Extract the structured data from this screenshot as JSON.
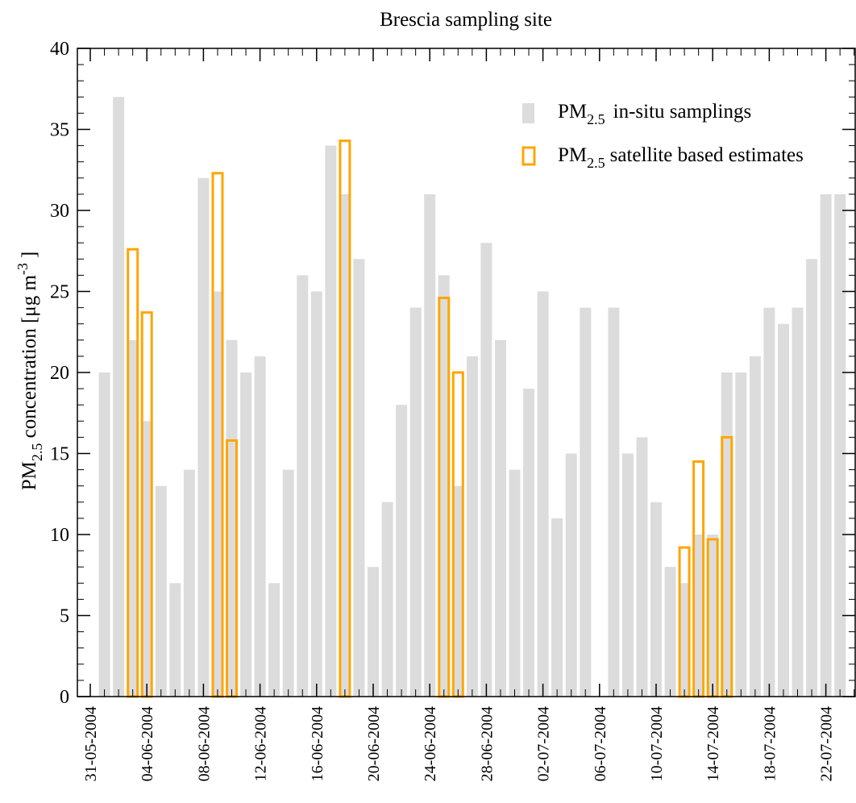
{
  "chart_data": {
    "type": "bar",
    "title": "Brescia sampling site",
    "ylabel": {
      "main": "PM",
      "sub": "2.5",
      "mid": " concentration  [μg m",
      "sup": "-3",
      "end": "]"
    },
    "ylim": [
      0,
      40
    ],
    "y_ticks": [
      "0",
      "5",
      "10",
      "15",
      "20",
      "25",
      "30",
      "35",
      "40"
    ],
    "x_ticks": [
      "31-05-2004",
      "04-06-2004",
      "08-06-2004",
      "12-06-2004",
      "16-06-2004",
      "20-06-2004",
      "24-06-2004",
      "28-06-2004",
      "02-07-2004",
      "06-07-2004",
      "10-07-2004",
      "14-07-2004",
      "18-07-2004",
      "22-07-2004"
    ],
    "x_start": "31-05-2004",
    "legend_position": "top-right",
    "series": [
      {
        "name_main": "PM",
        "name_sub": "2.5",
        "name_rest": "in-situ samplings",
        "color": "#dcdcdc",
        "style": "filled",
        "points": [
          [
            "01-06-2004",
            20
          ],
          [
            "02-06-2004",
            37
          ],
          [
            "03-06-2004",
            22
          ],
          [
            "04-06-2004",
            17
          ],
          [
            "05-06-2004",
            13
          ],
          [
            "06-06-2004",
            7
          ],
          [
            "07-06-2004",
            14
          ],
          [
            "08-06-2004",
            32
          ],
          [
            "09-06-2004",
            25
          ],
          [
            "10-06-2004",
            22
          ],
          [
            "11-06-2004",
            20
          ],
          [
            "12-06-2004",
            21
          ],
          [
            "13-06-2004",
            7
          ],
          [
            "14-06-2004",
            14
          ],
          [
            "15-06-2004",
            26
          ],
          [
            "16-06-2004",
            25
          ],
          [
            "17-06-2004",
            34
          ],
          [
            "18-06-2004",
            31
          ],
          [
            "19-06-2004",
            27
          ],
          [
            "20-06-2004",
            8
          ],
          [
            "21-06-2004",
            12
          ],
          [
            "22-06-2004",
            18
          ],
          [
            "23-06-2004",
            24
          ],
          [
            "24-06-2004",
            31
          ],
          [
            "25-06-2004",
            26
          ],
          [
            "26-06-2004",
            13
          ],
          [
            "27-06-2004",
            21
          ],
          [
            "28-06-2004",
            28
          ],
          [
            "29-06-2004",
            22
          ],
          [
            "30-06-2004",
            14
          ],
          [
            "01-07-2004",
            19
          ],
          [
            "02-07-2004",
            25
          ],
          [
            "03-07-2004",
            11
          ],
          [
            "04-07-2004",
            15
          ],
          [
            "05-07-2004",
            24
          ],
          [
            "07-07-2004",
            24
          ],
          [
            "08-07-2004",
            15
          ],
          [
            "09-07-2004",
            16
          ],
          [
            "10-07-2004",
            12
          ],
          [
            "11-07-2004",
            8
          ],
          [
            "12-07-2004",
            7
          ],
          [
            "13-07-2004",
            10
          ],
          [
            "14-07-2004",
            10
          ],
          [
            "15-07-2004",
            20
          ],
          [
            "16-07-2004",
            20
          ],
          [
            "17-07-2004",
            21
          ],
          [
            "18-07-2004",
            24
          ],
          [
            "19-07-2004",
            23
          ],
          [
            "20-07-2004",
            24
          ],
          [
            "21-07-2004",
            27
          ],
          [
            "22-07-2004",
            31
          ],
          [
            "23-07-2004",
            31
          ]
        ]
      },
      {
        "name_main": "PM",
        "name_sub": "2.5",
        "name_rest": "satellite based estimates",
        "color": "#ffa500",
        "style": "outline",
        "points": [
          [
            "03-06-2004",
            27.6
          ],
          [
            "04-06-2004",
            23.7
          ],
          [
            "09-06-2004",
            32.3
          ],
          [
            "10-06-2004",
            15.8
          ],
          [
            "18-06-2004",
            34.3
          ],
          [
            "25-06-2004",
            24.6
          ],
          [
            "26-06-2004",
            20.0
          ],
          [
            "12-07-2004",
            9.2
          ],
          [
            "13-07-2004",
            14.5
          ],
          [
            "14-07-2004",
            9.7
          ],
          [
            "15-07-2004",
            16.0
          ]
        ]
      }
    ]
  }
}
